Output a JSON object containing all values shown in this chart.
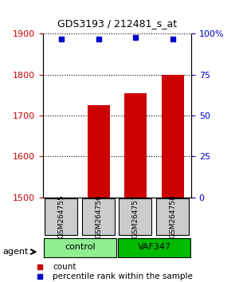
{
  "title": "GDS3193 / 212481_s_at",
  "samples": [
    "GSM264755",
    "GSM264756",
    "GSM264757",
    "GSM264758"
  ],
  "counts": [
    1500,
    1725,
    1755,
    1800
  ],
  "percentiles": [
    97,
    97,
    98,
    97
  ],
  "ylim_left": [
    1500,
    1900
  ],
  "ylim_right": [
    0,
    100
  ],
  "yticks_left": [
    1500,
    1600,
    1700,
    1800,
    1900
  ],
  "yticks_right": [
    0,
    25,
    50,
    75,
    100
  ],
  "yticklabels_right": [
    "0",
    "25",
    "50",
    "75",
    "100%"
  ],
  "bar_color": "#cc0000",
  "dot_color": "#0000cc",
  "groups": [
    {
      "label": "control",
      "samples": [
        0,
        1
      ],
      "color": "#90ee90"
    },
    {
      "label": "VAF347",
      "samples": [
        2,
        3
      ],
      "color": "#00bb00"
    }
  ],
  "agent_label": "agent",
  "legend_count_label": "count",
  "legend_pct_label": "percentile rank within the sample",
  "grid_color": "#000000",
  "background_color": "#ffffff",
  "sample_box_color": "#cccccc"
}
